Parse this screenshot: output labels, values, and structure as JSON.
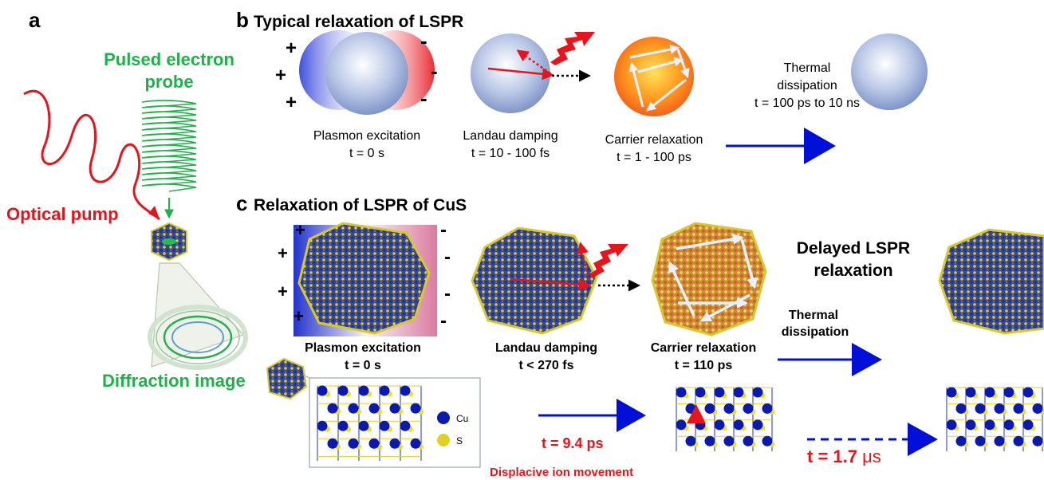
{
  "panel_a": {
    "letter": "a",
    "probe_line1": "Pulsed electron",
    "probe_line2": "probe",
    "pump_label": "Optical pump",
    "diffraction_label": "Diffraction image"
  },
  "panel_b": {
    "letter": "b",
    "title": "Typical relaxation of LSPR",
    "plus_sign": "+",
    "minus_sign": "-",
    "stages": [
      {
        "name": "Plasmon excitation",
        "time": "t  = 0 s"
      },
      {
        "name": "Landau damping",
        "time": "t = 10 - 100 fs"
      },
      {
        "name": "Carrier relaxation",
        "time": "t = 1 - 100 ps"
      }
    ],
    "thermal_line1": "Thermal",
    "thermal_line2": "dissipation",
    "thermal_time": "t = 100 ps to 10 ns"
  },
  "panel_c": {
    "letter": "c",
    "title": "Relaxation of LSPR of CuS",
    "stages": [
      {
        "name": "Plasmon excitation",
        "time": "t  = 0 s"
      },
      {
        "name": "Landau damping",
        "time": "t < 270 fs"
      },
      {
        "name": "Carrier relaxation",
        "time": "t = 110 ps"
      }
    ],
    "delayed_line1": "Delayed LSPR",
    "delayed_line2": "relaxation",
    "thermal_line1": "Thermal",
    "thermal_line2": "dissipation",
    "legend_cu": "Cu",
    "legend_s": "S",
    "time_ion": "t = 9.4 ps",
    "time_long_prefix": "t = 1.7 ",
    "time_long_unit": "μs",
    "displacive_label": "Displacive ion movement"
  },
  "colors": {
    "green": "#22b04a",
    "red": "#e8141b",
    "blue": "#0010d8",
    "text": "#000000"
  }
}
